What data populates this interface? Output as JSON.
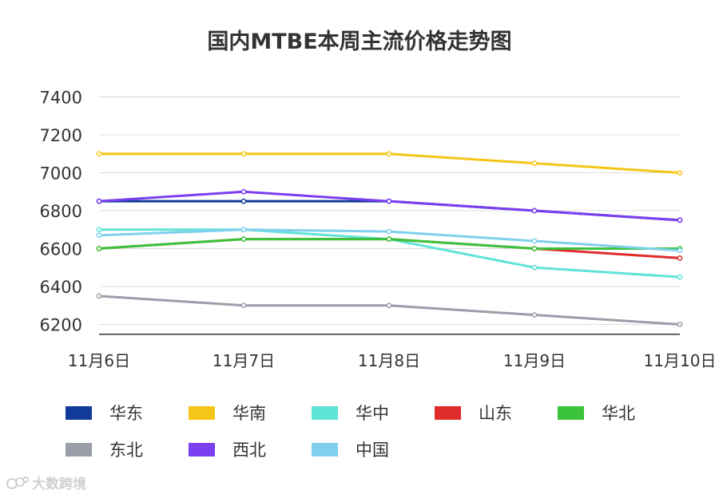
{
  "chart_data": {
    "type": "line",
    "title": "国内MTBE本周主流价格走势图",
    "xlabel": "",
    "ylabel": "",
    "categories": [
      "11月6日",
      "11月7日",
      "11月8日",
      "11月9日",
      "11月10日"
    ],
    "ylim": [
      6150,
      7450
    ],
    "yticks": [
      6200,
      6400,
      6600,
      6800,
      7000,
      7200,
      7400
    ],
    "grid": true,
    "legend_position": "bottom",
    "series": [
      {
        "name": "华东",
        "color": "#123b99",
        "values": [
          6850,
          6850,
          6850,
          6800,
          6750
        ]
      },
      {
        "name": "华南",
        "color": "#f5c518",
        "values": [
          7100,
          7100,
          7100,
          7050,
          7000
        ]
      },
      {
        "name": "华中",
        "color": "#5fe3d6",
        "values": [
          6700,
          6700,
          6650,
          6500,
          6450
        ]
      },
      {
        "name": "山东",
        "color": "#e02b2b",
        "values": [
          6600,
          6650,
          6650,
          6600,
          6550
        ]
      },
      {
        "name": "华北",
        "color": "#3bc43b",
        "values": [
          6600,
          6650,
          6650,
          6600,
          6600
        ]
      },
      {
        "name": "东北",
        "color": "#9a9ea8",
        "values": [
          6350,
          6300,
          6300,
          6250,
          6200
        ]
      },
      {
        "name": "西北",
        "color": "#7b3ff2",
        "values": [
          6850,
          6900,
          6850,
          6800,
          6750
        ]
      },
      {
        "name": "中国",
        "color": "#7fd0ec",
        "values": [
          6670,
          6700,
          6690,
          6640,
          6590
        ]
      }
    ]
  },
  "watermark": "大数跨境"
}
